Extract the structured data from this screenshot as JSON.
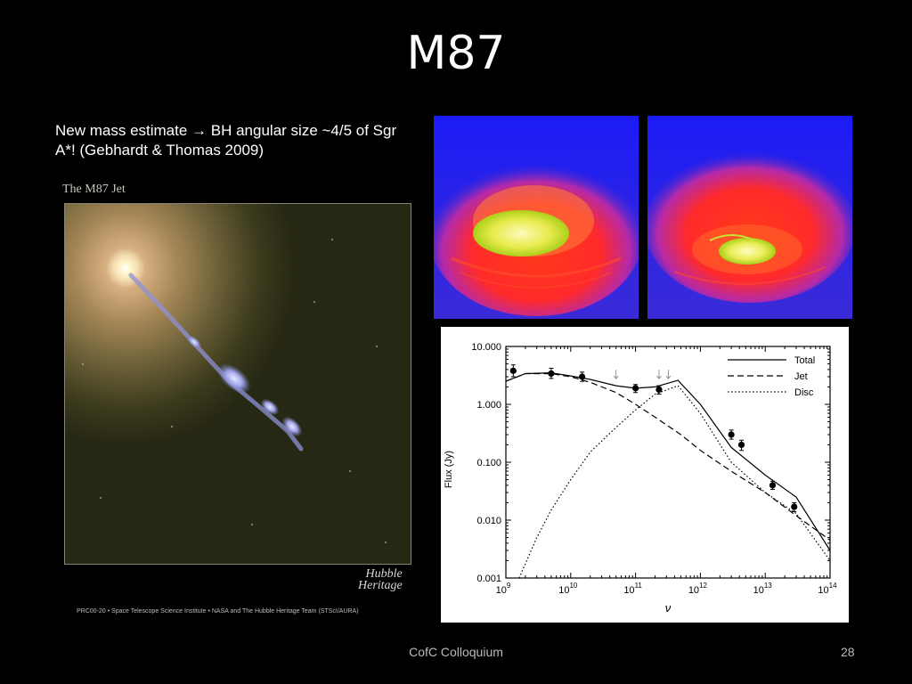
{
  "slide": {
    "title": "M87",
    "bullet_text": "New mass estimate → BH angular size ~4/5 of Sgr A*! (Gebhardt & Thomas 2009)",
    "footer": "CofC Colloquium",
    "page_number": "28"
  },
  "hubble_image": {
    "caption": "The M87 Jet",
    "logo_line1": "Hubble",
    "logo_line2": "Heritage",
    "credit": "PRC00-20 • Space Telescope Science Institute • NASA and The Hubble Heritage Team (STScI/AURA)"
  },
  "colors": {
    "background": "#000000",
    "sim_background": "#2121ff",
    "sim_red": "#ff2a1a",
    "sim_yellow": "#f4f07a"
  },
  "chart_data": {
    "type": "line",
    "title": "",
    "xlabel": "ν",
    "ylabel": "Flux (Jy)",
    "x_scale": "log",
    "y_scale": "log",
    "xlim": [
      1000000000.0,
      100000000000000.0
    ],
    "ylim": [
      0.001,
      10
    ],
    "x_ticks": [
      {
        "value": 1000000000.0,
        "base": "10",
        "exp": "9"
      },
      {
        "value": 10000000000.0,
        "base": "10",
        "exp": "10"
      },
      {
        "value": 100000000000.0,
        "base": "10",
        "exp": "11"
      },
      {
        "value": 1000000000000.0,
        "base": "10",
        "exp": "12"
      },
      {
        "value": 10000000000000.0,
        "base": "10",
        "exp": "13"
      },
      {
        "value": 100000000000000.0,
        "base": "10",
        "exp": "14"
      }
    ],
    "y_ticks": [
      {
        "value": 10,
        "label": "10.000"
      },
      {
        "value": 1,
        "label": "1.000"
      },
      {
        "value": 0.1,
        "label": "0.100"
      },
      {
        "value": 0.01,
        "label": "0.010"
      },
      {
        "value": 0.001,
        "label": "0.001"
      }
    ],
    "legend_position": "top-right",
    "series": [
      {
        "name": "Total",
        "dash": "solid",
        "x": [
          1000000000.0,
          2000000000.0,
          5000000000.0,
          10000000000.0,
          20000000000.0,
          50000000000.0,
          100000000000.0,
          200000000000.0,
          450000000000.0,
          1000000000000.0,
          3000000000000.0,
          10000000000000.0,
          30000000000000.0,
          100000000000000.0
        ],
        "y": [
          2.5,
          3.4,
          3.5,
          3.1,
          2.7,
          2.1,
          1.9,
          2.0,
          2.6,
          1.0,
          0.18,
          0.06,
          0.025,
          0.003
        ]
      },
      {
        "name": "Jet",
        "dash": "dashed",
        "x": [
          1000000000.0,
          2000000000.0,
          5000000000.0,
          10000000000.0,
          20000000000.0,
          50000000000.0,
          100000000000.0,
          200000000000.0,
          500000000000.0,
          1000000000000.0,
          3000000000000.0,
          10000000000000.0,
          30000000000000.0,
          100000000000000.0
        ],
        "y": [
          2.5,
          3.4,
          3.4,
          3.0,
          2.4,
          1.6,
          1.0,
          0.6,
          0.3,
          0.16,
          0.07,
          0.03,
          0.012,
          0.0045
        ]
      },
      {
        "name": "Disc",
        "dash": "dotted",
        "x": [
          1600000000.0,
          3000000000.0,
          5000000000.0,
          10000000000.0,
          20000000000.0,
          50000000000.0,
          100000000000.0,
          200000000000.0,
          450000000000.0,
          1000000000000.0,
          3000000000000.0,
          10000000000000.0,
          30000000000000.0,
          100000000000000.0
        ],
        "y": [
          0.001,
          0.005,
          0.015,
          0.05,
          0.15,
          0.4,
          0.8,
          1.5,
          2.1,
          0.7,
          0.1,
          0.03,
          0.013,
          0.002
        ]
      }
    ],
    "data_points": [
      {
        "x": 1300000000.0,
        "y": 3.8,
        "err": [
          3.0,
          4.8
        ]
      },
      {
        "x": 5000000000.0,
        "y": 3.4,
        "err": [
          2.8,
          4.2
        ]
      },
      {
        "x": 15000000000.0,
        "y": 3.0,
        "err": [
          2.5,
          3.6
        ]
      },
      {
        "x": 100000000000.0,
        "y": 1.9,
        "err": [
          1.6,
          2.2
        ]
      },
      {
        "x": 230000000000.0,
        "y": 1.8,
        "err": [
          1.5,
          2.1
        ]
      },
      {
        "x": 3000000000000.0,
        "y": 0.3,
        "err": [
          0.25,
          0.36
        ]
      },
      {
        "x": 4300000000000.0,
        "y": 0.2,
        "err": [
          0.16,
          0.24
        ]
      },
      {
        "x": 13000000000000.0,
        "y": 0.04,
        "err": [
          0.034,
          0.047
        ]
      },
      {
        "x": 28000000000000.0,
        "y": 0.017,
        "err": [
          0.014,
          0.02
        ]
      }
    ],
    "upper_limits": [
      {
        "x": 50000000000.0,
        "y": 3.2
      },
      {
        "x": 230000000000.0,
        "y": 3.2
      },
      {
        "x": 320000000000.0,
        "y": 3.2
      }
    ]
  }
}
